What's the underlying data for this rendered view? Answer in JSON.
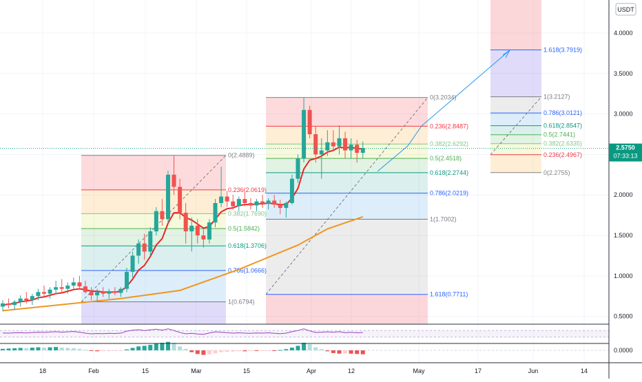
{
  "chart_data": {
    "type": "candlestick",
    "currency_badge": "USDT",
    "price_axis": {
      "min": 0.3,
      "max": 4.3,
      "ticks": [
        "4.0000",
        "3.5000",
        "3.0000",
        "2.5000",
        "2.0000",
        "1.5000",
        "1.0000",
        "0.5000"
      ]
    },
    "last_price": {
      "value": 2.575,
      "label": "2.5750",
      "countdown": "07:33:13",
      "color": "#089981"
    },
    "x_axis": {
      "ticks": [
        "18",
        "Feb",
        "15",
        "Mar",
        "15",
        "Apr",
        "12",
        "May",
        "17",
        "Jun",
        "14"
      ]
    },
    "macd_axis": {
      "ticks": [
        "0.0000"
      ]
    },
    "series": [
      {
        "name": "EMA fast",
        "color": "#e62828"
      },
      {
        "name": "EMA slow",
        "color": "#f0961e"
      },
      {
        "name": "RSI",
        "color": "#9b3fb5"
      }
    ],
    "candles": [
      {
        "o": 0.62,
        "h": 0.7,
        "l": 0.56,
        "c": 0.66
      },
      {
        "o": 0.66,
        "h": 0.72,
        "l": 0.6,
        "c": 0.64
      },
      {
        "o": 0.64,
        "h": 0.7,
        "l": 0.58,
        "c": 0.68
      },
      {
        "o": 0.68,
        "h": 0.76,
        "l": 0.62,
        "c": 0.72
      },
      {
        "o": 0.72,
        "h": 0.8,
        "l": 0.66,
        "c": 0.7
      },
      {
        "o": 0.7,
        "h": 0.78,
        "l": 0.64,
        "c": 0.75
      },
      {
        "o": 0.75,
        "h": 0.84,
        "l": 0.7,
        "c": 0.8
      },
      {
        "o": 0.8,
        "h": 0.88,
        "l": 0.74,
        "c": 0.78
      },
      {
        "o": 0.78,
        "h": 0.86,
        "l": 0.72,
        "c": 0.83
      },
      {
        "o": 0.83,
        "h": 0.94,
        "l": 0.78,
        "c": 0.86
      },
      {
        "o": 0.86,
        "h": 0.96,
        "l": 0.8,
        "c": 0.84
      },
      {
        "o": 0.84,
        "h": 0.92,
        "l": 0.78,
        "c": 0.88
      },
      {
        "o": 0.88,
        "h": 0.98,
        "l": 0.82,
        "c": 0.92
      },
      {
        "o": 0.92,
        "h": 1.0,
        "l": 0.84,
        "c": 0.87
      },
      {
        "o": 0.87,
        "h": 0.94,
        "l": 0.78,
        "c": 0.8
      },
      {
        "o": 0.8,
        "h": 0.86,
        "l": 0.7,
        "c": 0.76
      },
      {
        "o": 0.76,
        "h": 0.84,
        "l": 0.69,
        "c": 0.8
      },
      {
        "o": 0.8,
        "h": 0.86,
        "l": 0.74,
        "c": 0.78
      },
      {
        "o": 0.78,
        "h": 0.84,
        "l": 0.72,
        "c": 0.81
      },
      {
        "o": 0.81,
        "h": 0.86,
        "l": 0.76,
        "c": 0.79
      },
      {
        "o": 0.79,
        "h": 0.86,
        "l": 0.74,
        "c": 0.84
      },
      {
        "o": 0.84,
        "h": 1.1,
        "l": 0.8,
        "c": 1.05
      },
      {
        "o": 1.05,
        "h": 1.3,
        "l": 0.98,
        "c": 1.25
      },
      {
        "o": 1.25,
        "h": 1.45,
        "l": 1.15,
        "c": 1.4
      },
      {
        "o": 1.4,
        "h": 1.52,
        "l": 1.2,
        "c": 1.3
      },
      {
        "o": 1.3,
        "h": 1.6,
        "l": 1.25,
        "c": 1.55
      },
      {
        "o": 1.55,
        "h": 1.85,
        "l": 1.5,
        "c": 1.8
      },
      {
        "o": 1.8,
        "h": 1.95,
        "l": 1.62,
        "c": 1.7
      },
      {
        "o": 1.7,
        "h": 2.3,
        "l": 1.65,
        "c": 2.25
      },
      {
        "o": 2.25,
        "h": 2.49,
        "l": 2.0,
        "c": 2.1
      },
      {
        "o": 2.1,
        "h": 2.2,
        "l": 1.7,
        "c": 1.78
      },
      {
        "o": 1.78,
        "h": 1.9,
        "l": 1.4,
        "c": 1.55
      },
      {
        "o": 1.55,
        "h": 1.72,
        "l": 1.3,
        "c": 1.62
      },
      {
        "o": 1.62,
        "h": 1.7,
        "l": 1.4,
        "c": 1.5
      },
      {
        "o": 1.5,
        "h": 1.58,
        "l": 1.35,
        "c": 1.45
      },
      {
        "o": 1.45,
        "h": 1.7,
        "l": 1.4,
        "c": 1.66
      },
      {
        "o": 1.66,
        "h": 1.95,
        "l": 1.6,
        "c": 1.9
      },
      {
        "o": 1.9,
        "h": 2.35,
        "l": 1.85,
        "c": 1.98
      },
      {
        "o": 1.98,
        "h": 2.05,
        "l": 1.85,
        "c": 1.92
      },
      {
        "o": 1.92,
        "h": 2.0,
        "l": 1.82,
        "c": 1.86
      },
      {
        "o": 1.86,
        "h": 1.98,
        "l": 1.8,
        "c": 1.95
      },
      {
        "o": 1.95,
        "h": 2.02,
        "l": 1.86,
        "c": 1.9
      },
      {
        "o": 1.9,
        "h": 1.96,
        "l": 1.82,
        "c": 1.87
      },
      {
        "o": 1.87,
        "h": 1.95,
        "l": 1.8,
        "c": 1.92
      },
      {
        "o": 1.92,
        "h": 2.0,
        "l": 1.84,
        "c": 1.89
      },
      {
        "o": 1.89,
        "h": 1.96,
        "l": 1.82,
        "c": 1.93
      },
      {
        "o": 1.93,
        "h": 2.0,
        "l": 1.84,
        "c": 1.88
      },
      {
        "o": 1.88,
        "h": 1.94,
        "l": 1.76,
        "c": 1.84
      },
      {
        "o": 1.84,
        "h": 1.92,
        "l": 1.72,
        "c": 1.9
      },
      {
        "o": 1.9,
        "h": 2.25,
        "l": 1.88,
        "c": 2.2
      },
      {
        "o": 2.2,
        "h": 2.5,
        "l": 2.15,
        "c": 2.45
      },
      {
        "o": 2.45,
        "h": 3.2,
        "l": 2.4,
        "c": 3.05
      },
      {
        "o": 3.05,
        "h": 3.1,
        "l": 2.7,
        "c": 2.75
      },
      {
        "o": 2.75,
        "h": 2.85,
        "l": 2.4,
        "c": 2.5
      },
      {
        "o": 2.5,
        "h": 2.7,
        "l": 2.2,
        "c": 2.55
      },
      {
        "o": 2.55,
        "h": 2.8,
        "l": 2.48,
        "c": 2.65
      },
      {
        "o": 2.65,
        "h": 2.8,
        "l": 2.55,
        "c": 2.6
      },
      {
        "o": 2.6,
        "h": 2.86,
        "l": 2.5,
        "c": 2.7
      },
      {
        "o": 2.7,
        "h": 2.78,
        "l": 2.45,
        "c": 2.55
      },
      {
        "o": 2.55,
        "h": 2.7,
        "l": 2.45,
        "c": 2.62
      },
      {
        "o": 2.62,
        "h": 2.68,
        "l": 2.4,
        "c": 2.52
      },
      {
        "o": 2.52,
        "h": 2.66,
        "l": 2.45,
        "c": 2.58
      }
    ],
    "ema_fast": [
      0.64,
      0.65,
      0.66,
      0.68,
      0.69,
      0.7,
      0.73,
      0.74,
      0.76,
      0.78,
      0.79,
      0.81,
      0.83,
      0.84,
      0.83,
      0.81,
      0.81,
      0.8,
      0.8,
      0.8,
      0.81,
      0.87,
      0.96,
      1.07,
      1.13,
      1.24,
      1.38,
      1.46,
      1.65,
      1.78,
      1.78,
      1.72,
      1.69,
      1.64,
      1.59,
      1.61,
      1.7,
      1.79,
      1.83,
      1.84,
      1.87,
      1.88,
      1.88,
      1.89,
      1.89,
      1.9,
      1.89,
      1.88,
      1.88,
      1.96,
      2.08,
      2.32,
      2.43,
      2.45,
      2.48,
      2.53,
      2.55,
      2.59,
      2.58,
      2.59,
      2.57,
      2.57
    ],
    "ema_slow_dates": [
      0,
      20,
      30,
      40,
      50,
      55,
      61
    ],
    "ema_slow": [
      0.57,
      0.72,
      0.82,
      1.08,
      1.38,
      1.58,
      1.73
    ],
    "fib_sets": [
      {
        "from": 0,
        "to": 1,
        "levels": [
          {
            "r": "0",
            "price": 2.4889,
            "label": "0(2.4889)",
            "color": "#808080"
          },
          {
            "r": "0.236",
            "price": 2.0619,
            "label": "0.236(2.0619)",
            "color": "#f23645"
          },
          {
            "r": "0.382",
            "price": 1.769,
            "label": "0.382(1.7690)",
            "color": "#81c784"
          },
          {
            "r": "0.5",
            "price": 1.5842,
            "label": "0.5(1.5842)",
            "color": "#4caf50"
          },
          {
            "r": "0.618",
            "price": 1.3706,
            "label": "0.618(1.3706)",
            "color": "#089981"
          },
          {
            "r": "0.786",
            "price": 1.0666,
            "label": "0.786(1.0666)",
            "color": "#2962ff"
          },
          {
            "r": "1",
            "price": 0.6794,
            "label": "1(0.6794)",
            "color": "#787b86"
          }
        ]
      },
      {
        "from": 2,
        "to": 3,
        "levels": [
          {
            "r": "0",
            "price": 3.2034,
            "label": "0(3.2034)",
            "color": "#808080"
          },
          {
            "r": "0.236",
            "price": 2.8487,
            "label": "0.236(2.8487)",
            "color": "#f23645"
          },
          {
            "r": "0.382",
            "price": 2.6292,
            "label": "0.382(2.6292)",
            "color": "#81c784"
          },
          {
            "r": "0.5",
            "price": 2.4518,
            "label": "0.5(2.4518)",
            "color": "#4caf50"
          },
          {
            "r": "0.618",
            "price": 2.2744,
            "label": "0.618(2.2744)",
            "color": "#089981"
          },
          {
            "r": "0.786",
            "price": 2.0219,
            "label": "0.786(2.0219)",
            "color": "#2962ff"
          },
          {
            "r": "1",
            "price": 1.7002,
            "label": "1(1.7002)",
            "color": "#787b86"
          },
          {
            "r": "1.618",
            "price": 0.7711,
            "label": "1.618(0.7711)",
            "color": "#2962ff"
          }
        ]
      },
      {
        "from": 4,
        "to": 5,
        "levels": [
          {
            "r": "1.618",
            "price": 3.7919,
            "label": "1.618(3.7919)",
            "color": "#2962ff"
          },
          {
            "r": "1",
            "price": 3.2127,
            "label": "1(3.2127)",
            "color": "#787b86"
          },
          {
            "r": "0.786",
            "price": 3.0121,
            "label": "0.786(3.0121)",
            "color": "#2962ff"
          },
          {
            "r": "0.618",
            "price": 2.8547,
            "label": "0.618(2.8547)",
            "color": "#089981"
          },
          {
            "r": "0.5",
            "price": 2.7441,
            "label": "0.5(2.7441)",
            "color": "#4caf50"
          },
          {
            "r": "0.382",
            "price": 2.6335,
            "label": "0.382(2.6335)",
            "color": "#81c784"
          },
          {
            "r": "0.236",
            "price": 2.4967,
            "label": "0.236(2.4967)",
            "color": "#f23645"
          },
          {
            "r": "0",
            "price": 2.2755,
            "label": "0(2.2755)",
            "color": "#808080"
          }
        ]
      }
    ],
    "rsi": [
      55,
      54,
      56,
      57,
      55,
      58,
      60,
      59,
      61,
      63,
      60,
      62,
      64,
      60,
      54,
      50,
      52,
      51,
      53,
      52,
      54,
      66,
      72,
      75,
      70,
      74,
      78,
      72,
      80,
      70,
      58,
      50,
      53,
      49,
      47,
      55,
      62,
      60,
      57,
      54,
      56,
      54,
      53,
      55,
      54,
      56,
      53,
      51,
      54,
      63,
      70,
      80,
      68,
      58,
      60,
      62,
      60,
      63,
      57,
      59,
      56,
      58
    ],
    "macd_hist": [
      0.01,
      0.012,
      0.014,
      0.016,
      0.015,
      0.018,
      0.02,
      0.018,
      0.02,
      0.022,
      0.018,
      0.016,
      0.014,
      0.01,
      0.004,
      -0.004,
      -0.006,
      -0.005,
      -0.004,
      -0.003,
      -0.002,
      0.006,
      0.016,
      0.026,
      0.03,
      0.036,
      0.046,
      0.05,
      0.056,
      0.05,
      0.026,
      0.01,
      -0.012,
      -0.024,
      -0.03,
      -0.026,
      -0.02,
      -0.012,
      -0.01,
      -0.008,
      -0.006,
      -0.006,
      -0.004,
      -0.004,
      -0.003,
      -0.002,
      -0.002,
      0.002,
      0.008,
      0.018,
      0.03,
      0.05,
      0.04,
      0.02,
      0.008,
      -0.006,
      -0.018,
      -0.022,
      -0.02,
      -0.022,
      -0.024,
      -0.026
    ]
  }
}
